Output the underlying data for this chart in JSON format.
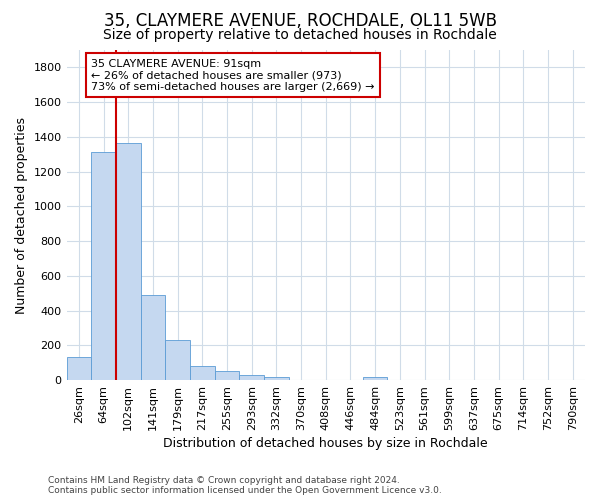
{
  "title": "35, CLAYMERE AVENUE, ROCHDALE, OL11 5WB",
  "subtitle": "Size of property relative to detached houses in Rochdale",
  "xlabel": "Distribution of detached houses by size in Rochdale",
  "ylabel": "Number of detached properties",
  "bar_color": "#c5d8f0",
  "bar_edge_color": "#5b9bd5",
  "highlight_color": "#cc0000",
  "categories": [
    "26sqm",
    "64sqm",
    "102sqm",
    "141sqm",
    "179sqm",
    "217sqm",
    "255sqm",
    "293sqm",
    "332sqm",
    "370sqm",
    "408sqm",
    "446sqm",
    "484sqm",
    "523sqm",
    "561sqm",
    "599sqm",
    "637sqm",
    "675sqm",
    "714sqm",
    "752sqm",
    "790sqm"
  ],
  "values": [
    135,
    1310,
    1365,
    490,
    230,
    80,
    50,
    28,
    15,
    0,
    0,
    0,
    20,
    0,
    0,
    0,
    0,
    0,
    0,
    0,
    0
  ],
  "ylim": [
    0,
    1900
  ],
  "yticks": [
    0,
    200,
    400,
    600,
    800,
    1000,
    1200,
    1400,
    1600,
    1800
  ],
  "annotation_text": "35 CLAYMERE AVENUE: 91sqm\n← 26% of detached houses are smaller (973)\n73% of semi-detached houses are larger (2,669) →",
  "annotation_box_color": "#ffffff",
  "annotation_box_edge_color": "#cc0000",
  "vline_bar_index": 2,
  "footnote": "Contains HM Land Registry data © Crown copyright and database right 2024.\nContains public sector information licensed under the Open Government Licence v3.0.",
  "bg_color": "#ffffff",
  "plot_bg_color": "#ffffff",
  "grid_color": "#d0dce8",
  "title_fontsize": 12,
  "subtitle_fontsize": 10,
  "axis_label_fontsize": 9,
  "tick_fontsize": 8,
  "footnote_fontsize": 6.5
}
